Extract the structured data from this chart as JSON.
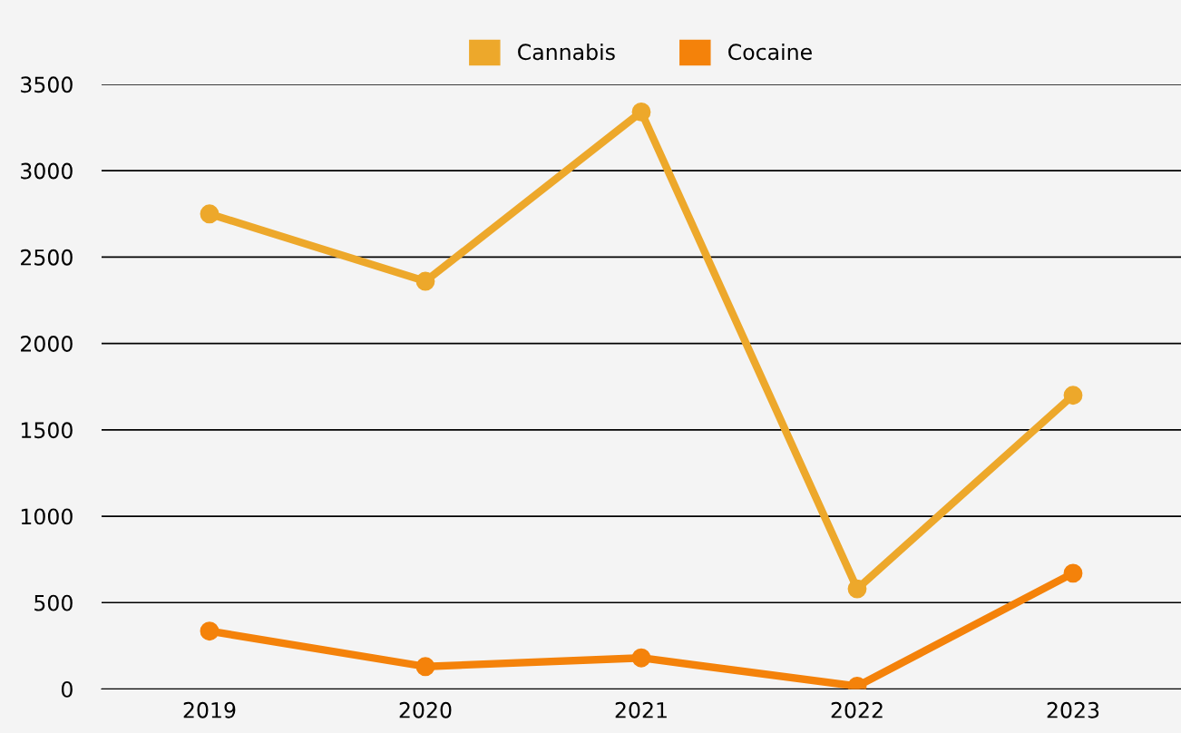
{
  "chart_data": {
    "type": "line",
    "categories": [
      "2019",
      "2020",
      "2021",
      "2022",
      "2023"
    ],
    "series": [
      {
        "name": "Cannabis",
        "color": "#eda82b",
        "values": [
          2750,
          2360,
          3340,
          580,
          1700
        ]
      },
      {
        "name": "Cocaine",
        "color": "#f4820a",
        "values": [
          335,
          130,
          180,
          16,
          670
        ]
      }
    ],
    "ylim": [
      0,
      3500
    ],
    "yticks": [
      0,
      500,
      1000,
      1500,
      2000,
      2500,
      3000,
      3500
    ],
    "grid": "y",
    "legend": "top",
    "marker": "circle",
    "line_style": "solid"
  }
}
